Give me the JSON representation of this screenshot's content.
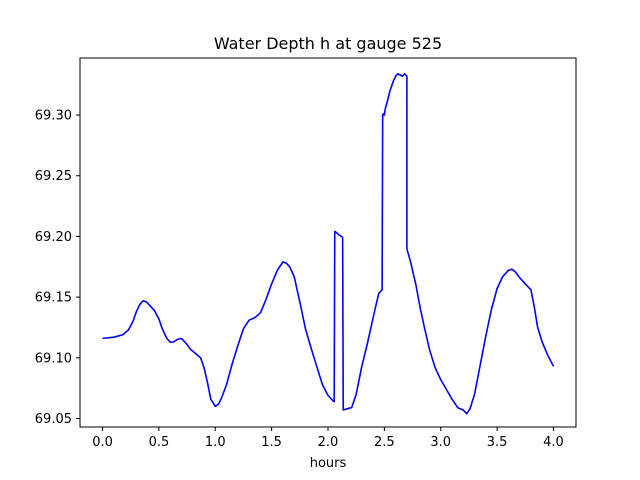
{
  "chart_data": {
    "type": "line",
    "title": "Water Depth h at gauge 525",
    "xlabel": "hours",
    "ylabel": "",
    "xlim": [
      -0.2,
      4.2
    ],
    "ylim": [
      69.043,
      69.347
    ],
    "xticks": [
      0.0,
      0.5,
      1.0,
      1.5,
      2.0,
      2.5,
      3.0,
      3.5,
      4.0
    ],
    "xtick_labels": [
      "0.0",
      "0.5",
      "1.0",
      "1.5",
      "2.0",
      "2.5",
      "3.0",
      "3.5",
      "4.0"
    ],
    "yticks": [
      69.05,
      69.1,
      69.15,
      69.2,
      69.25,
      69.3
    ],
    "ytick_labels": [
      "69.05",
      "69.10",
      "69.15",
      "69.20",
      "69.25",
      "69.30"
    ],
    "grid": false,
    "legend": "none",
    "series": [
      {
        "color": "#0000ff",
        "x": [
          0.0,
          0.1,
          0.18,
          0.23,
          0.27,
          0.3,
          0.33,
          0.36,
          0.39,
          0.43,
          0.46,
          0.5,
          0.53,
          0.57,
          0.6,
          0.63,
          0.66,
          0.7,
          0.72,
          0.75,
          0.78,
          0.82,
          0.87,
          0.9,
          0.93,
          0.96,
          1.0,
          1.03,
          1.06,
          1.1,
          1.15,
          1.2,
          1.25,
          1.3,
          1.35,
          1.4,
          1.45,
          1.5,
          1.55,
          1.6,
          1.63,
          1.66,
          1.7,
          1.75,
          1.8,
          1.85,
          1.9,
          1.95,
          2.0,
          2.05,
          2.055,
          2.06,
          2.065,
          2.1,
          2.12,
          2.13,
          2.135,
          2.17,
          2.21,
          2.25,
          2.3,
          2.35,
          2.4,
          2.45,
          2.48,
          2.485,
          2.49,
          2.5,
          2.51,
          2.52,
          2.55,
          2.58,
          2.6,
          2.62,
          2.64,
          2.66,
          2.68,
          2.7,
          2.7,
          2.705,
          2.73,
          2.78,
          2.82,
          2.86,
          2.9,
          2.95,
          3.0,
          3.05,
          3.1,
          3.15,
          3.2,
          3.23,
          3.26,
          3.3,
          3.35,
          3.4,
          3.45,
          3.5,
          3.55,
          3.6,
          3.63,
          3.66,
          3.7,
          3.75,
          3.8,
          3.83,
          3.86,
          3.9,
          3.95,
          4.0
        ],
        "y": [
          69.116,
          69.117,
          69.119,
          69.123,
          69.13,
          69.138,
          69.144,
          69.147,
          69.146,
          69.142,
          69.139,
          69.132,
          69.124,
          69.116,
          69.113,
          69.113,
          69.115,
          69.116,
          69.114,
          69.111,
          69.107,
          69.104,
          69.1,
          69.092,
          69.08,
          69.066,
          69.06,
          69.062,
          69.068,
          69.078,
          69.095,
          69.11,
          69.124,
          69.131,
          69.133,
          69.137,
          69.148,
          69.161,
          69.172,
          69.179,
          69.178,
          69.175,
          69.167,
          69.146,
          69.124,
          69.108,
          69.093,
          69.078,
          69.069,
          69.064,
          69.064,
          69.204,
          69.204,
          69.201,
          69.2,
          69.199,
          69.057,
          69.058,
          69.059,
          69.07,
          69.093,
          69.112,
          69.133,
          69.153,
          69.156,
          69.3,
          69.301,
          69.3,
          69.306,
          69.309,
          69.32,
          69.328,
          69.332,
          69.334,
          69.333,
          69.332,
          69.334,
          69.332,
          69.19,
          69.188,
          69.18,
          69.16,
          69.14,
          69.123,
          69.107,
          69.092,
          69.082,
          69.074,
          69.066,
          69.059,
          69.057,
          69.054,
          69.058,
          69.07,
          69.094,
          69.118,
          69.14,
          69.157,
          69.167,
          69.172,
          69.173,
          69.171,
          69.166,
          69.161,
          69.156,
          69.142,
          69.125,
          69.113,
          69.102,
          69.093
        ]
      }
    ]
  }
}
